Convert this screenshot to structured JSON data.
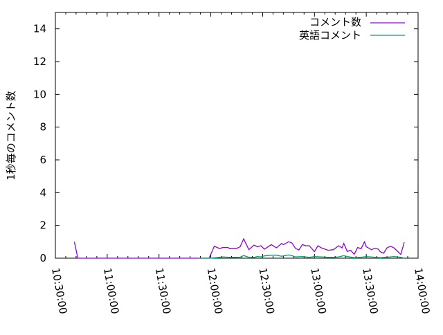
{
  "chart_data": {
    "type": "line",
    "title": "",
    "xlabel": "",
    "ylabel": "1秒毎のコメント数",
    "xlim": [
      "10:30:00",
      "14:00:00"
    ],
    "ylim": [
      0,
      15
    ],
    "xticks": [
      "10:30:00",
      "11:00:00",
      "11:30:00",
      "12:00:00",
      "12:30:00",
      "13:00:00",
      "13:30:00",
      "14:00:00"
    ],
    "yticks": [
      "0",
      "2",
      "4",
      "6",
      "8",
      "10",
      "12",
      "14"
    ],
    "grid": false,
    "legend_position": "top-right",
    "series": [
      {
        "name": "コメント数",
        "color": "#9400d3",
        "points": [
          [
            "10:41",
            1.0
          ],
          [
            "10:43",
            0
          ],
          [
            "11:53",
            0
          ],
          [
            "11:59",
            0
          ],
          [
            "12:02",
            0.73
          ],
          [
            "12:05",
            0.59
          ],
          [
            "12:07",
            0.65
          ],
          [
            "12:10",
            0.65
          ],
          [
            "12:11",
            0.58
          ],
          [
            "12:15",
            0.6
          ],
          [
            "12:17",
            0.7
          ],
          [
            "12:19",
            1.18
          ],
          [
            "12:22",
            0.52
          ],
          [
            "12:25",
            0.8
          ],
          [
            "12:27",
            0.7
          ],
          [
            "12:29",
            0.76
          ],
          [
            "12:31",
            0.55
          ],
          [
            "12:35",
            0.83
          ],
          [
            "12:38",
            0.63
          ],
          [
            "12:41",
            0.9
          ],
          [
            "12:42",
            0.83
          ],
          [
            "12:45",
            1.0
          ],
          [
            "12:47",
            0.93
          ],
          [
            "12:49",
            0.6
          ],
          [
            "12:51",
            0.5
          ],
          [
            "12:53",
            0.83
          ],
          [
            "12:55",
            0.76
          ],
          [
            "12:57",
            0.76
          ],
          [
            "13:00",
            0.4
          ],
          [
            "13:02",
            0.76
          ],
          [
            "13:04",
            0.63
          ],
          [
            "13:08",
            0.48
          ],
          [
            "13:11",
            0.52
          ],
          [
            "13:14",
            0.76
          ],
          [
            "13:16",
            0.63
          ],
          [
            "13:17",
            0.9
          ],
          [
            "13:19",
            0.41
          ],
          [
            "13:21",
            0.48
          ],
          [
            "13:23",
            0.24
          ],
          [
            "13:25",
            0.65
          ],
          [
            "13:27",
            0.58
          ],
          [
            "13:29",
            1.0
          ],
          [
            "13:30",
            0.7
          ],
          [
            "13:33",
            0.52
          ],
          [
            "13:35",
            0.6
          ],
          [
            "13:37",
            0.55
          ],
          [
            "13:38",
            0.4
          ],
          [
            "13:40",
            0.3
          ],
          [
            "13:42",
            0.63
          ],
          [
            "13:44",
            0.73
          ],
          [
            "13:46",
            0.63
          ],
          [
            "13:50",
            0.23
          ],
          [
            "13:52",
            0.97
          ]
        ]
      },
      {
        "name": "英語コメント",
        "color": "#009e73",
        "points": [
          [
            "11:53",
            0
          ],
          [
            "11:59",
            0
          ],
          [
            "12:02",
            0.02
          ],
          [
            "12:05",
            0.05
          ],
          [
            "12:07",
            0.08
          ],
          [
            "12:10",
            0.06
          ],
          [
            "12:11",
            0.05
          ],
          [
            "12:15",
            0.05
          ],
          [
            "12:17",
            0.06
          ],
          [
            "12:19",
            0.16
          ],
          [
            "12:22",
            0.06
          ],
          [
            "12:25",
            0.05
          ],
          [
            "12:27",
            0.1
          ],
          [
            "12:29",
            0.08
          ],
          [
            "12:31",
            0.14
          ],
          [
            "12:35",
            0.18
          ],
          [
            "12:38",
            0.18
          ],
          [
            "12:41",
            0.12
          ],
          [
            "12:45",
            0.2
          ],
          [
            "12:47",
            0.15
          ],
          [
            "12:49",
            0.08
          ],
          [
            "12:53",
            0.1
          ],
          [
            "12:57",
            0.05
          ],
          [
            "13:00",
            0.1
          ],
          [
            "13:04",
            0.08
          ],
          [
            "13:08",
            0.05
          ],
          [
            "13:11",
            0.05
          ],
          [
            "13:14",
            0.08
          ],
          [
            "13:17",
            0.15
          ],
          [
            "13:19",
            0.1
          ],
          [
            "13:23",
            0.03
          ],
          [
            "13:27",
            0.06
          ],
          [
            "13:30",
            0.1
          ],
          [
            "13:35",
            0.06
          ],
          [
            "13:38",
            0.03
          ],
          [
            "13:42",
            0.06
          ],
          [
            "13:46",
            0.1
          ],
          [
            "13:50",
            0.06
          ],
          [
            "13:52",
            0.0
          ]
        ]
      }
    ]
  }
}
